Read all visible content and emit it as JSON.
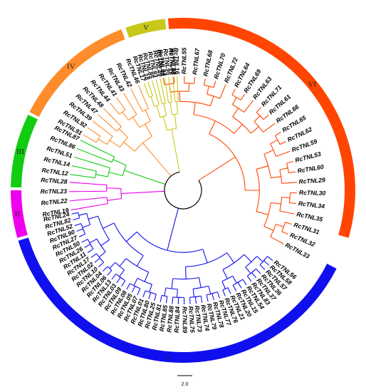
{
  "groups": [
    {
      "id": "VI",
      "label": "VI",
      "color": "#ff4500",
      "leaves": [
        "RcTNL40",
        "RcTNL38",
        "RcTNL55",
        "RcTNL67",
        "RcTNL68",
        "RcTNL70",
        "RcTNL72",
        "RcTNL64",
        "RcTNL69",
        "RcTNL63",
        "RcTNL71",
        "RcTNL61",
        "RcTNL66",
        "RcTNL65",
        "RcTNL62",
        "RcTNL59",
        "RcTNL53",
        "RcTNL60",
        "RcTNL29",
        "RcTNL30",
        "RcTNL34",
        "RcTNL35",
        "RcTNL31",
        "RcTNL32",
        "RcTNL33"
      ]
    },
    {
      "id": "I",
      "label": "I",
      "color": "#1010ee",
      "leaves": [
        "RcTNL56",
        "RcTNL58",
        "RcTNL57",
        "RcTNL36",
        "RcTNL37",
        "RcTNL83",
        "RcTNL54",
        "RcTNL15",
        "RcTNL20",
        "RcTNL21",
        "RcTNL76",
        "RcTNL77",
        "RcTNL78",
        "RcTNL79",
        "RcTNL74",
        "RcTNL73",
        "RcTNL75",
        "RcTNL89",
        "RcTNL84",
        "RcTNL88",
        "RcTNL85",
        "RcTNL81",
        "RcTNL25",
        "RcTNL80",
        "RcTNL01",
        "RcTNL07",
        "RcTNL05",
        "RcTNL08",
        "RcTNL09",
        "RcTNL03",
        "RcTNL13",
        "RcTNL06",
        "RcTNL04",
        "RcTNL10",
        "RcTNL02",
        "RcTNL17",
        "RcTNL11",
        "RcTNL26",
        "RcTNL50",
        "RcTNL27",
        "RcTNL90",
        "RcTNL52",
        "RcTNL82",
        "RcTNL24"
      ]
    },
    {
      "id": "II",
      "label": "II",
      "color": "#ee00ee",
      "leaves": [
        "RcTNL19",
        "RcTNL22",
        "RcTNL23",
        "RcTNL28"
      ]
    },
    {
      "id": "III",
      "label": "III",
      "color": "#11cc11",
      "leaves": [
        "RcTNL12",
        "RcTNL14",
        "RcTNL51",
        "RcTNL86",
        "RcTNL87"
      ]
    },
    {
      "id": "IV",
      "label": "IV",
      "color": "#ff8c2a",
      "leaves": [
        "RcTNL91",
        "RcTNL92",
        "RcTNL39",
        "RcTNL47",
        "RcTNL48",
        "RcTNL44",
        "RcTNL41",
        "RcTNL43",
        "RcTNL42",
        "RcTNL46"
      ]
    },
    {
      "id": "V",
      "label": "V",
      "color": "#c8c81a",
      "leaves": [
        "RcTNL17",
        "RcTNL18",
        "RcTNL85",
        "RcTNL93",
        "RcTNL49",
        "RcTNL94",
        "RcTNL95",
        "RcTNL96",
        "RcTNL16"
      ]
    }
  ],
  "scale_bar": {
    "label": "2.0"
  }
}
